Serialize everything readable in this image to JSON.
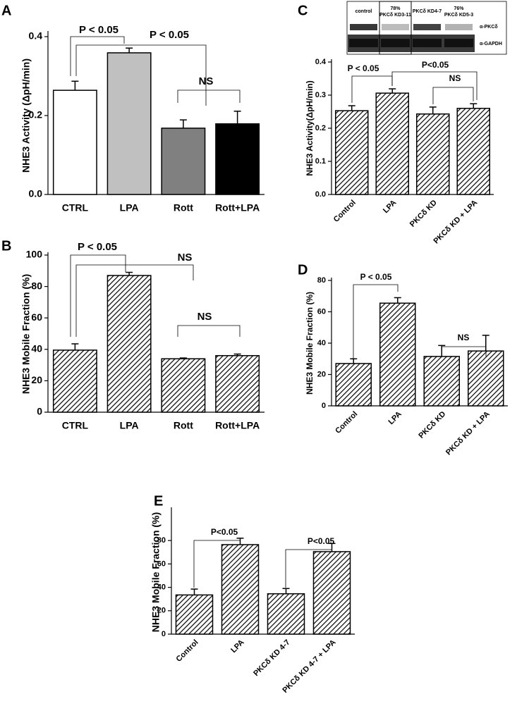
{
  "chart_data": [
    {
      "type": "bar",
      "panel": "A",
      "y_label": "NHE3 Activity (ΔpH/min)",
      "categories": [
        "CTRL",
        "LPA",
        "Rott",
        "Rott+LPA"
      ],
      "values": [
        0.264,
        0.359,
        0.168,
        0.179
      ],
      "errors": [
        0.023,
        0.012,
        0.021,
        0.032
      ],
      "colors": [
        "#ffffff",
        "#c0c0c0",
        "#808080",
        "#000000"
      ],
      "ylim": [
        0,
        0.4
      ],
      "yticks": [
        {
          "value": 0,
          "label": "0.0"
        },
        0.2,
        0.4
      ],
      "annotations": [
        "P < 0.05",
        "P < 0.05",
        "NS"
      ]
    },
    {
      "type": "bar",
      "panel": "B",
      "y_label": "NHE3 Mobile Fraction (%)",
      "categories": [
        "CTRL",
        "LPA",
        "Rott",
        "Rott+LPA"
      ],
      "values": [
        39.5,
        87,
        34,
        36
      ],
      "errors": [
        4,
        2,
        0.5,
        1
      ],
      "color": "#000000",
      "fill": "hatch",
      "ylim": [
        0,
        100
      ],
      "yticks": [
        0,
        20,
        40,
        60,
        80,
        100
      ],
      "annotations": [
        "P < 0.05",
        "NS",
        "NS"
      ]
    },
    {
      "type": "bar",
      "panel": "C",
      "y_label": "NHE3 Activity(ΔpH/min)",
      "categories": [
        "Control",
        "LPA",
        "PKCδ KD",
        "PKCδ KD + LPA"
      ],
      "values": [
        0.253,
        0.306,
        0.243,
        0.26
      ],
      "errors": [
        0.015,
        0.013,
        0.021,
        0.014
      ],
      "color": "#000000",
      "fill": "hatch",
      "ylim": [
        0,
        0.4
      ],
      "yticks": [
        {
          "value": 0,
          "label": "0.0"
        },
        0.1,
        0.2,
        0.3,
        0.4
      ],
      "annotations": [
        "P < 0.05",
        "P<0.05",
        "NS"
      ],
      "blot": {
        "lanes": [
          [
            "control"
          ],
          [
            "78%",
            "PKCδ KD3-11"
          ],
          [
            "PKCδ KD4-7"
          ],
          [
            "76%",
            "PKCδ KD5-3"
          ]
        ],
        "rows": [
          "α-PKCδ",
          "α-GAPDH"
        ]
      }
    },
    {
      "type": "bar",
      "panel": "D",
      "y_label": "NHE3 Mobile Fraction (%)",
      "categories": [
        "Control",
        "LPA",
        "PKCδ KD",
        "PKCδ KD + LPA"
      ],
      "values": [
        27,
        65.5,
        31.5,
        35
      ],
      "errors": [
        3,
        3.5,
        7,
        10
      ],
      "color": "#000000",
      "fill": "hatch",
      "ylim": [
        0,
        80
      ],
      "yticks": [
        0,
        20,
        40,
        60,
        80
      ],
      "annotations": [
        "P < 0.05",
        "NS"
      ]
    },
    {
      "type": "bar",
      "panel": "E",
      "y_label": "NHE3 Mobile Fraction (%)",
      "categories": [
        "Control",
        "LPA",
        "PKCδ KD 4-7",
        "PKCδ KD 4-7 + LPA"
      ],
      "values": [
        33.5,
        76.5,
        34.5,
        70.5
      ],
      "errors": [
        5,
        5.5,
        4.5,
        7
      ],
      "color": "#000000",
      "fill": "hatch",
      "ylim": [
        0,
        106
      ],
      "yticks": [
        0,
        20,
        40,
        60,
        80
      ],
      "annotations": [
        "P<0.05",
        "P<0.05"
      ]
    }
  ]
}
